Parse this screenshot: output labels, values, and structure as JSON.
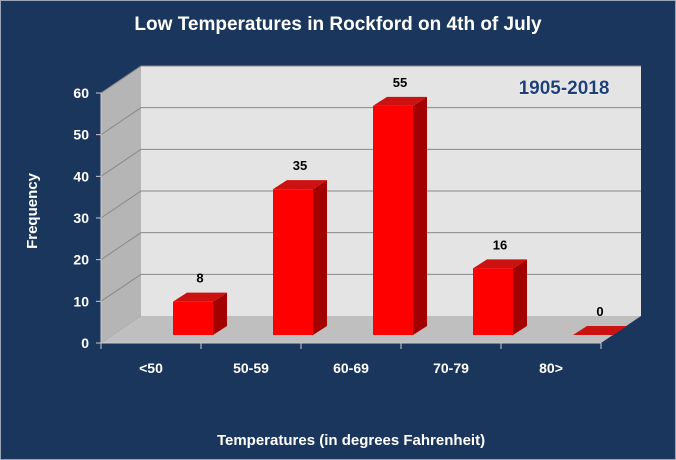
{
  "chart_data": {
    "type": "bar",
    "title": "Low Temperatures in Rockford on 4th of July",
    "annotation": "1905-2018",
    "xlabel": "Temperatures (in degrees Fahrenheit)",
    "ylabel": "Frequency",
    "categories": [
      "<50",
      "50-59",
      "60-69",
      "70-79",
      "80>"
    ],
    "values": [
      8,
      35,
      55,
      16,
      0
    ],
    "data_labels": [
      "8",
      "35",
      "55",
      "16",
      "0"
    ],
    "yticks": [
      0,
      10,
      20,
      30,
      40,
      50,
      60
    ],
    "ylim": [
      0,
      60
    ],
    "grid": true,
    "legend": "none",
    "three_d": true,
    "colors": {
      "background": "#1b365d",
      "bar_front": "#ff0000",
      "bar_side": "#a30000",
      "bar_top": "#cc1111",
      "back_wall": "#e4e4e4",
      "side_wall": "#b5b5b5",
      "floor": "#bfbfbf",
      "gridline": "#888888"
    }
  }
}
